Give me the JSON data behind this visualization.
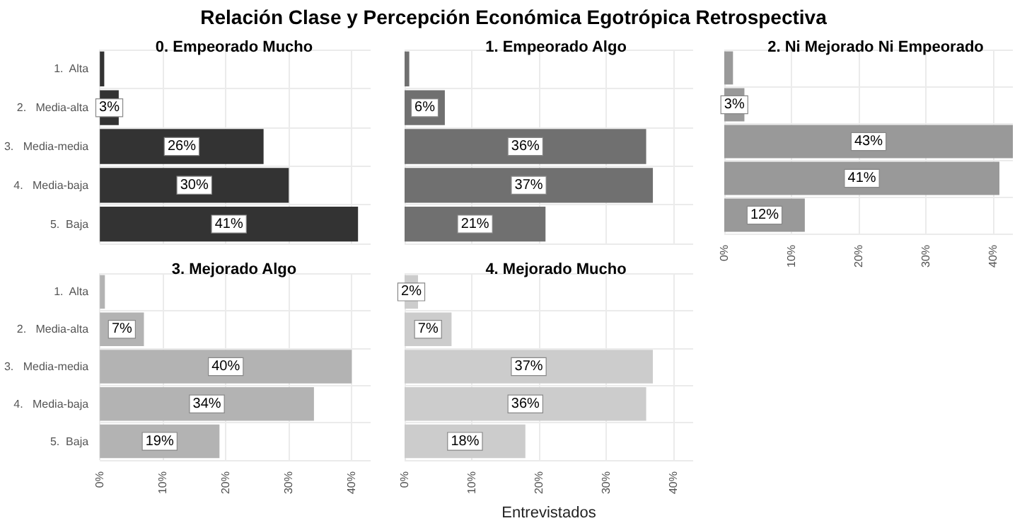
{
  "chart_data": [
    {
      "type": "other",
      "title": "Relación Clase y Percepción Económica Egotrópica Retrospectiva"
    },
    {
      "type": "bar",
      "orientation": "horizontal",
      "title": "0. Empeorado Mucho",
      "categories": [
        "1.  Alta",
        "2.   Media-alta",
        "3.   Media-media",
        "4.   Media-baja",
        "5.  Baja"
      ],
      "values": [
        0.7,
        3,
        26,
        30,
        41
      ],
      "value_labels": [
        null,
        "3%",
        "26%",
        "30%",
        "41%"
      ],
      "color": "#333333",
      "xlim": [
        0,
        43
      ],
      "xticks": [
        {
          "value": 0,
          "label": null
        },
        {
          "value": 10,
          "label": null
        },
        {
          "value": 20,
          "label": null
        },
        {
          "value": 30,
          "label": null
        },
        {
          "value": 40,
          "label": null
        }
      ],
      "grid": true,
      "tick_labels": "y"
    },
    {
      "type": "bar",
      "orientation": "horizontal",
      "title": "1. Empeorado Algo",
      "categories": [
        null,
        null,
        null,
        null,
        null
      ],
      "values": [
        0.7,
        6,
        36,
        37,
        21
      ],
      "value_labels": [
        null,
        "6%",
        "36%",
        "37%",
        "21%"
      ],
      "color": "#707070",
      "xlim": [
        0,
        43
      ],
      "xticks": [
        {
          "value": 0,
          "label": null
        },
        {
          "value": 10,
          "label": null
        },
        {
          "value": 20,
          "label": null
        },
        {
          "value": 30,
          "label": null
        },
        {
          "value": 40,
          "label": null
        }
      ],
      "grid": true,
      "tick_labels": false
    },
    {
      "type": "bar",
      "orientation": "horizontal",
      "title": "2. Ni Mejorado Ni Empeorado",
      "categories": [
        null,
        null,
        null,
        null,
        null
      ],
      "values": [
        1.3,
        3,
        43,
        41,
        12
      ],
      "value_labels": [
        null,
        "3%",
        "43%",
        "41%",
        "12%"
      ],
      "color": "#999999",
      "xlim": [
        0,
        43
      ],
      "xticks": [
        {
          "value": 0,
          "label": "0%"
        },
        {
          "value": 10,
          "label": "10%"
        },
        {
          "value": 20,
          "label": "20%"
        },
        {
          "value": 30,
          "label": "30%"
        },
        {
          "value": 40,
          "label": "40%"
        }
      ],
      "grid": true,
      "tick_labels": "x"
    },
    {
      "type": "bar",
      "orientation": "horizontal",
      "title": "3. Mejorado Algo",
      "categories": [
        "1.  Alta",
        "2.   Media-alta",
        "3.   Media-media",
        "4.   Media-baja",
        "5.  Baja"
      ],
      "values": [
        0.8,
        7,
        40,
        34,
        19
      ],
      "value_labels": [
        null,
        "7%",
        "40%",
        "34%",
        "19%"
      ],
      "color": "#b3b3b3",
      "xlim": [
        0,
        43
      ],
      "xticks": [
        {
          "value": 0,
          "label": "0%"
        },
        {
          "value": 10,
          "label": "10%"
        },
        {
          "value": 20,
          "label": "20%"
        },
        {
          "value": 30,
          "label": "30%"
        },
        {
          "value": 40,
          "label": "40%"
        }
      ],
      "grid": true
    },
    {
      "type": "bar",
      "orientation": "horizontal",
      "title": "4. Mejorado Mucho",
      "xlabel": "Entrevistados",
      "categories": [
        null,
        null,
        null,
        null,
        null
      ],
      "values": [
        2,
        7,
        37,
        36,
        18
      ],
      "value_labels": [
        "2%",
        "7%",
        "37%",
        "36%",
        "18%"
      ],
      "color": "#cccccc",
      "xlim": [
        0,
        43
      ],
      "xticks": [
        {
          "value": 0,
          "label": "0%"
        },
        {
          "value": 10,
          "label": "10%"
        },
        {
          "value": 20,
          "label": "20%"
        },
        {
          "value": 30,
          "label": "30%"
        },
        {
          "value": 40,
          "label": "40%"
        }
      ],
      "grid": true,
      "tick_labels": "x"
    }
  ]
}
